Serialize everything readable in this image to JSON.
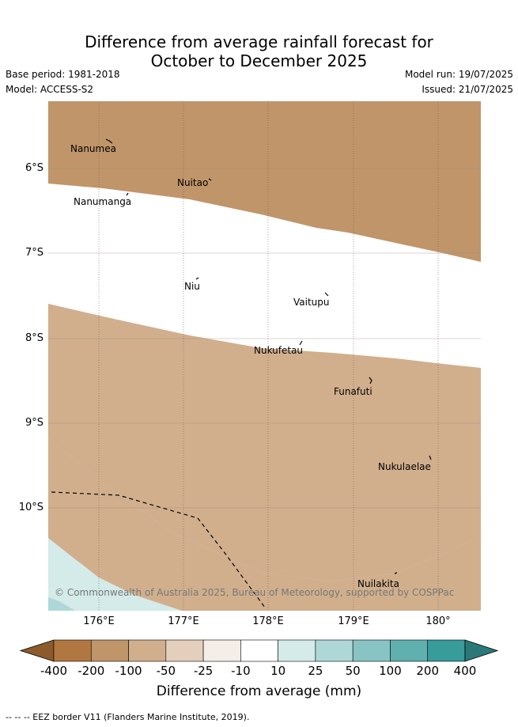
{
  "header": {
    "title_line1": "Difference from average rainfall forecast for",
    "title_line2": "October to December 2025",
    "base_period": "Base period: 1981-2018",
    "model": "Model: ACCESS-S2",
    "model_run": "Model run: 19/07/2025",
    "issued": "Issued: 21/07/2025"
  },
  "map": {
    "lat_labels": [
      "6°S",
      "7°S",
      "8°S",
      "9°S",
      "10°S"
    ],
    "lon_labels": [
      "176°E",
      "177°E",
      "178°E",
      "179°E",
      "180°"
    ],
    "places": [
      "Nanumea",
      "Nuitao",
      "Nanumanga",
      "Niu",
      "Vaitupu",
      "Nukufetau",
      "Funafuti",
      "Nukulaelae",
      "Nuilakita"
    ],
    "copyright": "© Commonwealth of Australia 2025, Bureau of Meteorology, supported by COSPPac"
  },
  "legend": {
    "ticks": [
      "-400",
      "-200",
      "-100",
      "-50",
      "-25",
      "-10",
      "10",
      "25",
      "50",
      "100",
      "200",
      "400"
    ],
    "colors": [
      "#8c5a2b",
      "#b07840",
      "#c0956a",
      "#d1af8d",
      "#e3cfbc",
      "#f4ede8",
      "#ffffff",
      "#d4ebea",
      "#aed8d7",
      "#88c4c3",
      "#5fb0af",
      "#389c9b",
      "#2a7878"
    ],
    "title": "Difference from average (mm)"
  },
  "footer": {
    "eez_note": "--  --  -- EEZ border V11 (Flanders Marine Institute, 2019)."
  }
}
